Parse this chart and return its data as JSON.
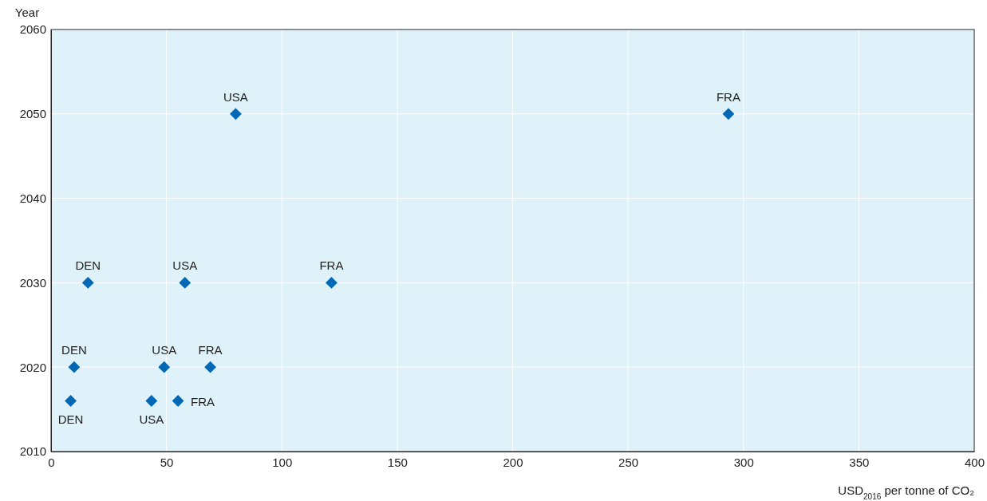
{
  "chart_data": {
    "type": "scatter",
    "xlabel": "USD$_{2016}$ per tonne of CO₂",
    "ylabel": "Year",
    "xlim": [
      0,
      400
    ],
    "xticks": [
      0,
      50,
      100,
      150,
      200,
      250,
      300,
      350,
      400
    ],
    "ylim": [
      2010,
      2060
    ],
    "yticks": [
      2010,
      2020,
      2030,
      2040,
      2050,
      2060
    ],
    "grid": true,
    "marker": "diamond",
    "legend": false,
    "series": [
      {
        "name": "DEN",
        "color": "#0068b4",
        "x": [
          8.5,
          10,
          16
        ],
        "values": [
          2016,
          2020,
          2030
        ]
      },
      {
        "name": "USA",
        "color": "#0068b4",
        "x": [
          43.5,
          49,
          58,
          80
        ],
        "values": [
          2016,
          2020,
          2030,
          2050
        ]
      },
      {
        "name": "FRA",
        "color": "#0068b4",
        "x": [
          55,
          69,
          121.5,
          293.5
        ],
        "values": [
          2016,
          2020,
          2030,
          2050
        ]
      }
    ]
  }
}
